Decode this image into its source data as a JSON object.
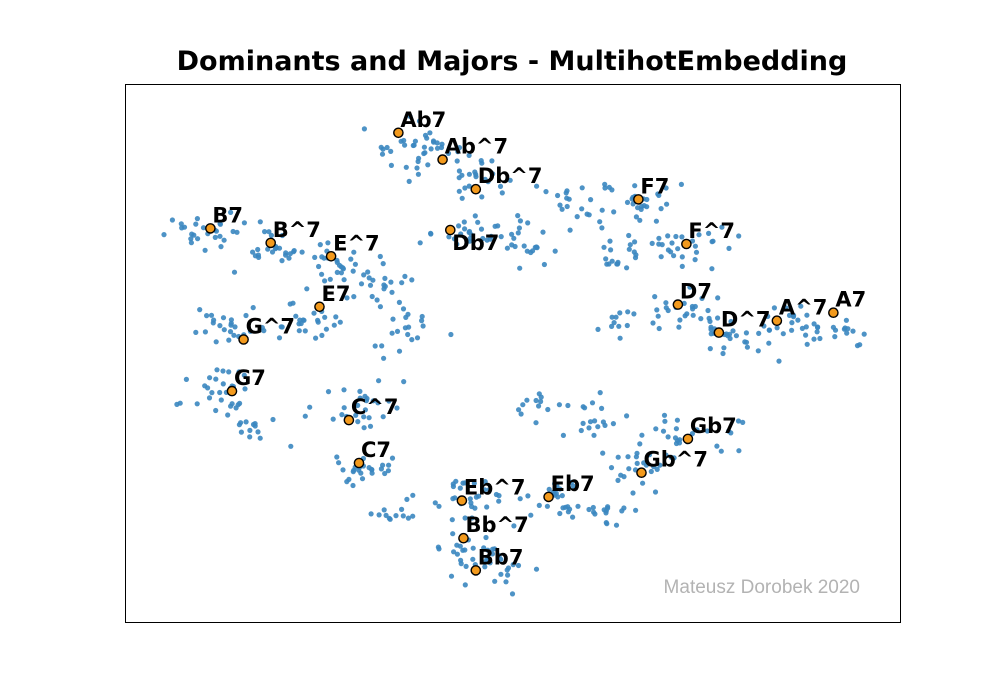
{
  "chart_data": {
    "type": "scatter",
    "title": "Dominants and Majors - MultihotEmbedding",
    "xlabel": "",
    "ylabel": "",
    "grid": false,
    "axes_ticks": false,
    "watermark": "Mateusz Dorobek 2020",
    "colors": {
      "background_points": "#3b87c0",
      "highlight_points": "#f39a1d",
      "highlight_edge": "#000000",
      "watermark": "#b3b3b3"
    },
    "xlim": [
      0,
      100
    ],
    "ylim": [
      0,
      100
    ],
    "highlighted": [
      {
        "label": "Ab7",
        "x": 35.2,
        "y": 91.1
      },
      {
        "label": "Ab^7",
        "x": 40.9,
        "y": 86.1
      },
      {
        "label": "Db^7",
        "x": 45.2,
        "y": 80.6
      },
      {
        "label": "Db7",
        "x": 41.9,
        "y": 73.0
      },
      {
        "label": "F7",
        "x": 66.2,
        "y": 78.7
      },
      {
        "label": "F^7",
        "x": 72.4,
        "y": 70.4
      },
      {
        "label": "B7",
        "x": 10.9,
        "y": 73.3
      },
      {
        "label": "B^7",
        "x": 18.7,
        "y": 70.6
      },
      {
        "label": "E^7",
        "x": 26.5,
        "y": 68.1
      },
      {
        "label": "E7",
        "x": 25.0,
        "y": 58.7
      },
      {
        "label": "G^7",
        "x": 15.2,
        "y": 52.6
      },
      {
        "label": "D7",
        "x": 71.3,
        "y": 59.1
      },
      {
        "label": "D^7",
        "x": 76.6,
        "y": 53.9
      },
      {
        "label": "A^7",
        "x": 84.1,
        "y": 56.1
      },
      {
        "label": "A7",
        "x": 91.4,
        "y": 57.6
      },
      {
        "label": "G7",
        "x": 13.7,
        "y": 43.0
      },
      {
        "label": "C^7",
        "x": 28.8,
        "y": 37.6
      },
      {
        "label": "C7",
        "x": 30.1,
        "y": 29.6
      },
      {
        "label": "Gb7",
        "x": 72.6,
        "y": 34.1
      },
      {
        "label": "Gb^7",
        "x": 66.6,
        "y": 27.8
      },
      {
        "label": "Eb^7",
        "x": 43.4,
        "y": 22.6
      },
      {
        "label": "Eb7",
        "x": 54.6,
        "y": 23.3
      },
      {
        "label": "Bb^7",
        "x": 43.6,
        "y": 15.6
      },
      {
        "label": "Bb7",
        "x": 45.2,
        "y": 9.6
      }
    ],
    "clusters": [
      {
        "x": 38.0,
        "y": 88.0,
        "sx": 5.0,
        "sy": 4.0,
        "n": 40
      },
      {
        "x": 46.0,
        "y": 82.0,
        "sx": 4.0,
        "sy": 3.5,
        "n": 22
      },
      {
        "x": 44.0,
        "y": 73.0,
        "sx": 5.0,
        "sy": 3.5,
        "n": 28
      },
      {
        "x": 52.0,
        "y": 70.0,
        "sx": 3.5,
        "sy": 4.0,
        "n": 18
      },
      {
        "x": 58.0,
        "y": 78.0,
        "sx": 4.0,
        "sy": 4.0,
        "n": 18
      },
      {
        "x": 66.0,
        "y": 78.0,
        "sx": 5.0,
        "sy": 4.0,
        "n": 30
      },
      {
        "x": 73.0,
        "y": 70.0,
        "sx": 5.0,
        "sy": 3.5,
        "n": 26
      },
      {
        "x": 64.0,
        "y": 68.0,
        "sx": 4.0,
        "sy": 4.0,
        "n": 20
      },
      {
        "x": 11.0,
        "y": 72.0,
        "sx": 5.0,
        "sy": 3.5,
        "n": 28
      },
      {
        "x": 19.0,
        "y": 69.0,
        "sx": 4.0,
        "sy": 3.5,
        "n": 24
      },
      {
        "x": 27.0,
        "y": 67.0,
        "sx": 4.0,
        "sy": 3.5,
        "n": 24
      },
      {
        "x": 34.0,
        "y": 63.0,
        "sx": 4.0,
        "sy": 4.0,
        "n": 20
      },
      {
        "x": 24.0,
        "y": 57.0,
        "sx": 5.0,
        "sy": 4.0,
        "n": 26
      },
      {
        "x": 13.0,
        "y": 55.0,
        "sx": 5.0,
        "sy": 3.5,
        "n": 26
      },
      {
        "x": 36.0,
        "y": 55.0,
        "sx": 4.0,
        "sy": 4.0,
        "n": 20
      },
      {
        "x": 72.0,
        "y": 58.0,
        "sx": 5.0,
        "sy": 4.0,
        "n": 26
      },
      {
        "x": 78.0,
        "y": 53.0,
        "sx": 5.0,
        "sy": 3.5,
        "n": 26
      },
      {
        "x": 86.0,
        "y": 56.0,
        "sx": 4.0,
        "sy": 3.0,
        "n": 22
      },
      {
        "x": 92.0,
        "y": 54.0,
        "sx": 3.5,
        "sy": 3.0,
        "n": 16
      },
      {
        "x": 63.0,
        "y": 56.0,
        "sx": 3.0,
        "sy": 3.0,
        "n": 10
      },
      {
        "x": 12.0,
        "y": 43.0,
        "sx": 5.0,
        "sy": 4.0,
        "n": 30
      },
      {
        "x": 17.0,
        "y": 36.0,
        "sx": 4.0,
        "sy": 3.0,
        "n": 14
      },
      {
        "x": 30.0,
        "y": 40.0,
        "sx": 5.0,
        "sy": 4.0,
        "n": 28
      },
      {
        "x": 31.0,
        "y": 28.0,
        "sx": 4.0,
        "sy": 4.0,
        "n": 28
      },
      {
        "x": 34.0,
        "y": 20.0,
        "sx": 3.0,
        "sy": 3.0,
        "n": 12
      },
      {
        "x": 72.0,
        "y": 35.0,
        "sx": 5.0,
        "sy": 4.0,
        "n": 28
      },
      {
        "x": 66.0,
        "y": 28.0,
        "sx": 4.0,
        "sy": 4.0,
        "n": 24
      },
      {
        "x": 61.0,
        "y": 38.0,
        "sx": 4.0,
        "sy": 3.5,
        "n": 18
      },
      {
        "x": 52.0,
        "y": 40.0,
        "sx": 3.5,
        "sy": 3.0,
        "n": 12
      },
      {
        "x": 44.0,
        "y": 24.0,
        "sx": 4.0,
        "sy": 3.5,
        "n": 28
      },
      {
        "x": 56.0,
        "y": 23.0,
        "sx": 4.0,
        "sy": 3.5,
        "n": 28
      },
      {
        "x": 62.0,
        "y": 20.0,
        "sx": 3.5,
        "sy": 3.0,
        "n": 14
      },
      {
        "x": 45.0,
        "y": 13.0,
        "sx": 4.0,
        "sy": 4.0,
        "n": 32
      },
      {
        "x": 50.0,
        "y": 10.0,
        "sx": 3.0,
        "sy": 3.0,
        "n": 12
      }
    ]
  }
}
